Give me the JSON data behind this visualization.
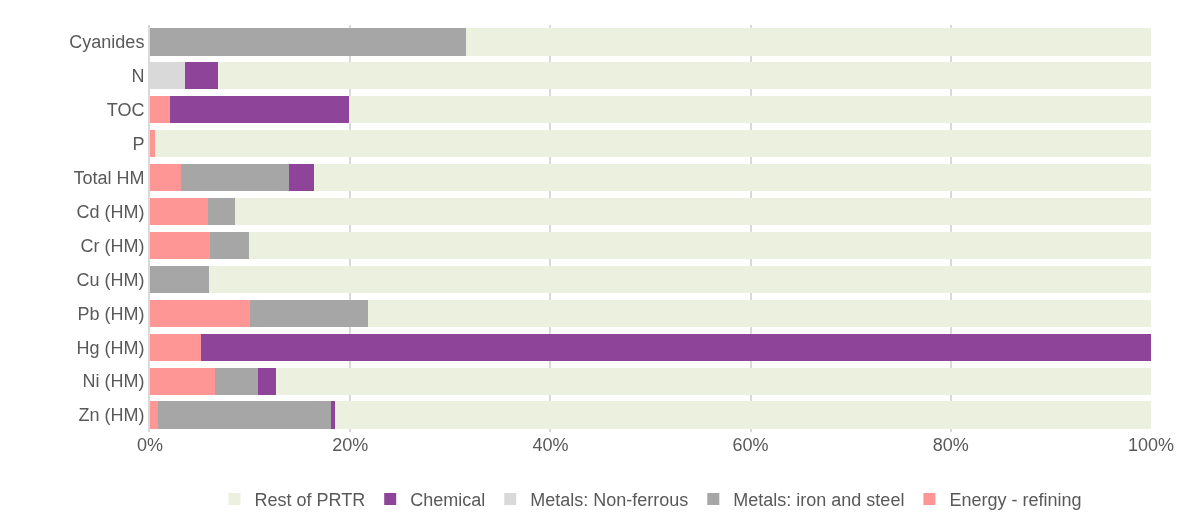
{
  "chart_data": {
    "type": "bar",
    "orientation": "horizontal",
    "stacked": true,
    "categories": [
      "Cyanides",
      "N",
      "TOC",
      "P",
      "Total HM",
      "Cd (HM)",
      "Cr (HM)",
      "Cu (HM)",
      "Pb (HM)",
      "Hg (HM)",
      "Ni (HM)",
      "Zn (HM)"
    ],
    "series": [
      {
        "name": "Energy - refining",
        "color": "#ff9696",
        "values": [
          0,
          0,
          2.0,
          0.5,
          3.1,
          5.8,
          6.0,
          0,
          10.0,
          5.1,
          6.5,
          0.8
        ]
      },
      {
        "name": "Metals: iron and steel",
        "color": "#a6a6a6",
        "values": [
          31.6,
          0,
          0,
          0,
          10.8,
          2.7,
          3.9,
          5.9,
          11.8,
          0,
          4.3,
          17.3
        ]
      },
      {
        "name": "Metals: Non-ferrous",
        "color": "#d9d9d9",
        "values": [
          0,
          3.5,
          0,
          0,
          0,
          0,
          0,
          0,
          0,
          0,
          0,
          0
        ]
      },
      {
        "name": "Chemical",
        "color": "#8e4499",
        "values": [
          0,
          3.3,
          17.9,
          0,
          2.5,
          0,
          0,
          0,
          0,
          94.9,
          1.8,
          0.4
        ]
      },
      {
        "name": "Rest of PRTR",
        "color": "#ebf1de",
        "values": [
          68.4,
          93.2,
          80.1,
          99.5,
          83.6,
          91.5,
          90.1,
          94.1,
          78.2,
          0,
          87.4,
          81.5
        ]
      }
    ],
    "xlim": [
      0,
      100
    ],
    "xticks": [
      {
        "value": 0,
        "label": "0%"
      },
      {
        "value": 20,
        "label": "20%"
      },
      {
        "value": 40,
        "label": "40%"
      },
      {
        "value": 60,
        "label": "60%"
      },
      {
        "value": 80,
        "label": "80%"
      },
      {
        "value": 100,
        "label": "100%"
      }
    ],
    "grid": "x",
    "legend": "bottom"
  }
}
